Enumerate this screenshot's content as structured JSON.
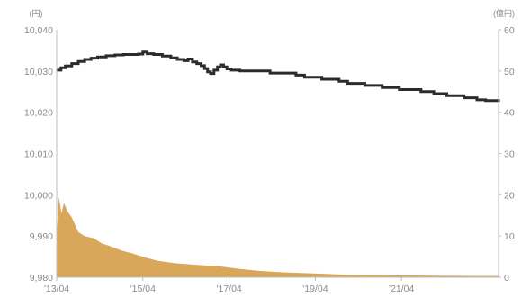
{
  "chart_data": {
    "type": "line",
    "x_ticks": [
      "'13/04",
      "'15/04",
      "'17/04",
      "'19/04",
      "'21/04"
    ],
    "y_left": {
      "unit": "(円)",
      "range": [
        9980,
        10040
      ],
      "ticks": [
        "10,040",
        "10,030",
        "10,020",
        "10,010",
        "10,000",
        "9,990",
        "9,980"
      ]
    },
    "y_right": {
      "unit": "(億円)",
      "range": [
        0,
        60
      ],
      "ticks": [
        "60",
        "50",
        "40",
        "30",
        "20",
        "10",
        "0"
      ]
    },
    "x_range": [
      2013.25,
      2023.5
    ],
    "grid": false,
    "series": [
      {
        "axis": "left",
        "kind": "step-line",
        "color": "#2b2b2b",
        "points": [
          [
            2013.25,
            10030.2
          ],
          [
            2013.35,
            10030.8
          ],
          [
            2013.45,
            10031.2
          ],
          [
            2013.6,
            10031.8
          ],
          [
            2013.75,
            10032.3
          ],
          [
            2013.9,
            10032.8
          ],
          [
            2014.05,
            10033.1
          ],
          [
            2014.2,
            10033.4
          ],
          [
            2014.4,
            10033.7
          ],
          [
            2014.6,
            10033.9
          ],
          [
            2014.8,
            10034.0
          ],
          [
            2015.0,
            10034.0
          ],
          [
            2015.15,
            10034.1
          ],
          [
            2015.25,
            10034.6
          ],
          [
            2015.35,
            10034.2
          ],
          [
            2015.5,
            10034.0
          ],
          [
            2015.7,
            10033.6
          ],
          [
            2015.9,
            10033.2
          ],
          [
            2016.05,
            10032.8
          ],
          [
            2016.2,
            10032.5
          ],
          [
            2016.3,
            10032.9
          ],
          [
            2016.4,
            10032.2
          ],
          [
            2016.5,
            10031.8
          ],
          [
            2016.6,
            10031.3
          ],
          [
            2016.68,
            10030.6
          ],
          [
            2016.75,
            10029.8
          ],
          [
            2016.82,
            10029.4
          ],
          [
            2016.9,
            10030.2
          ],
          [
            2016.98,
            10031.0
          ],
          [
            2017.05,
            10031.5
          ],
          [
            2017.12,
            10031.0
          ],
          [
            2017.2,
            10030.5
          ],
          [
            2017.3,
            10030.2
          ],
          [
            2017.5,
            10030.0
          ],
          [
            2018.0,
            10030.0
          ],
          [
            2018.2,
            10029.5
          ],
          [
            2018.8,
            10029.0
          ],
          [
            2019.0,
            10028.5
          ],
          [
            2019.4,
            10028.0
          ],
          [
            2019.8,
            10027.5
          ],
          [
            2020.0,
            10027.0
          ],
          [
            2020.4,
            10026.5
          ],
          [
            2020.8,
            10026.0
          ],
          [
            2021.2,
            10025.5
          ],
          [
            2021.7,
            10025.0
          ],
          [
            2022.0,
            10024.5
          ],
          [
            2022.3,
            10024.0
          ],
          [
            2022.7,
            10023.5
          ],
          [
            2023.0,
            10023.0
          ],
          [
            2023.2,
            10022.8
          ],
          [
            2023.5,
            10022.5
          ]
        ]
      },
      {
        "axis": "right",
        "kind": "area",
        "color": "#d9a75a",
        "points": [
          [
            2013.25,
            10.0
          ],
          [
            2013.3,
            19.5
          ],
          [
            2013.36,
            15.5
          ],
          [
            2013.42,
            18.0
          ],
          [
            2013.5,
            16.0
          ],
          [
            2013.6,
            14.5
          ],
          [
            2013.75,
            11.0
          ],
          [
            2013.9,
            10.0
          ],
          [
            2014.1,
            9.5
          ],
          [
            2014.3,
            8.2
          ],
          [
            2014.5,
            7.5
          ],
          [
            2014.75,
            6.5
          ],
          [
            2015.0,
            5.8
          ],
          [
            2015.3,
            4.8
          ],
          [
            2015.6,
            4.0
          ],
          [
            2016.0,
            3.4
          ],
          [
            2016.5,
            3.0
          ],
          [
            2017.0,
            2.7
          ],
          [
            2017.5,
            2.0
          ],
          [
            2018.0,
            1.5
          ],
          [
            2018.5,
            1.2
          ],
          [
            2019.0,
            1.0
          ],
          [
            2019.5,
            0.8
          ],
          [
            2020.0,
            0.6
          ],
          [
            2021.0,
            0.5
          ],
          [
            2022.0,
            0.4
          ],
          [
            2023.0,
            0.3
          ],
          [
            2023.5,
            0.3
          ]
        ]
      }
    ]
  }
}
